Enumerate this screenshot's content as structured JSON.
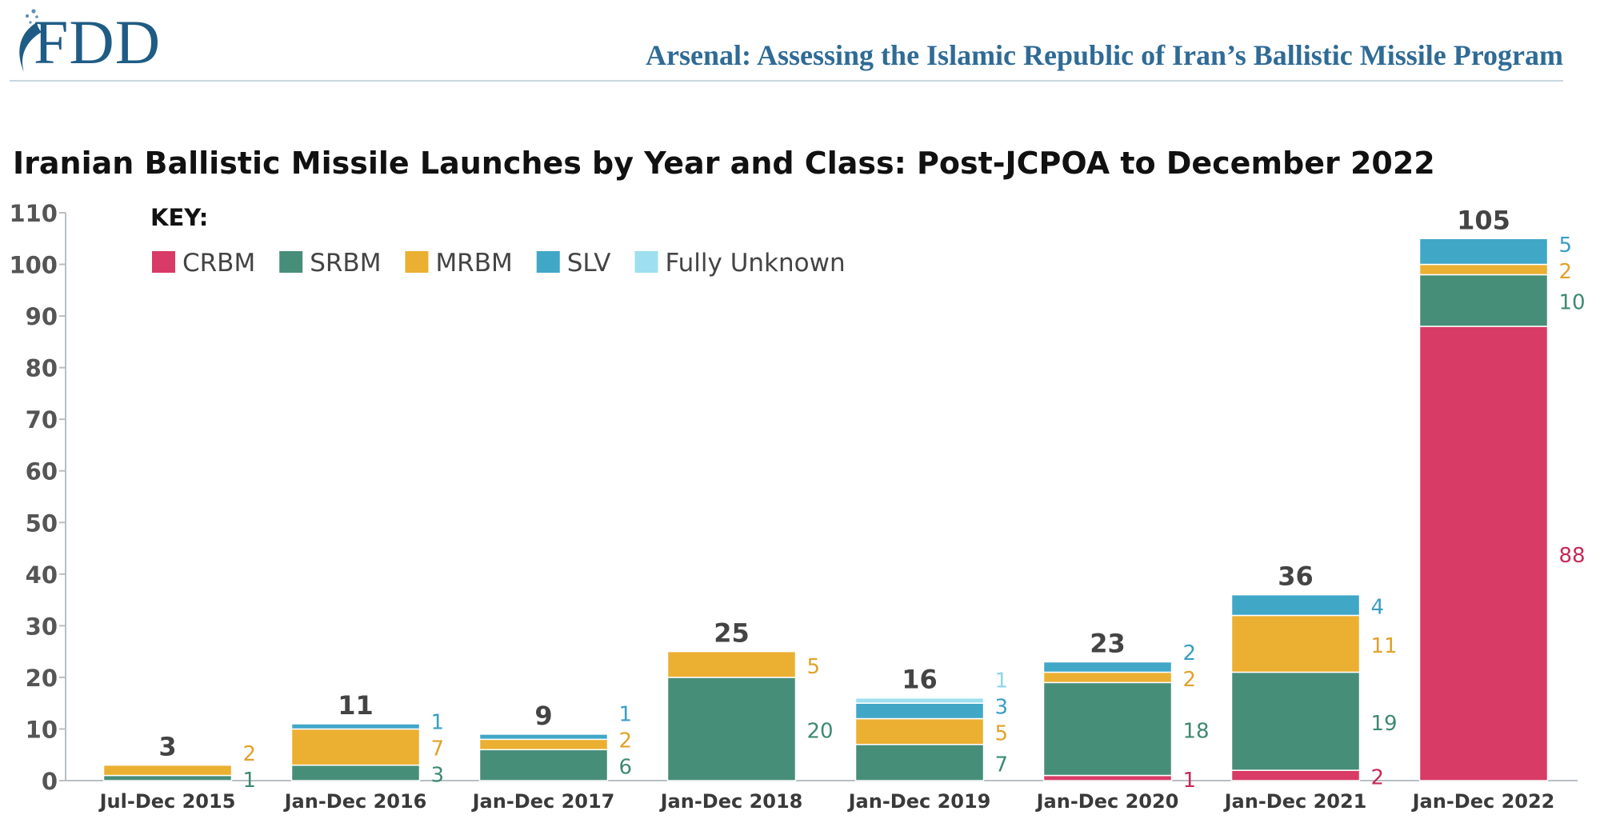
{
  "header": {
    "logo": "FDD",
    "title": "Arsenal: Assessing the Islamic Republic of Iran’s Ballistic Missile Program"
  },
  "chart_data": {
    "type": "bar",
    "stacked": true,
    "title": "Iranian Ballistic Missile Launches by Year and Class: Post-JCPOA to December 2022",
    "xlabel": "",
    "ylabel": "",
    "ylim": [
      0,
      110
    ],
    "yticks": [
      0,
      10,
      20,
      30,
      40,
      50,
      60,
      70,
      80,
      90,
      100,
      110
    ],
    "grid": false,
    "legend_title": "KEY:",
    "legend_position": "top-left",
    "categories": [
      "Jul-Dec 2015",
      "Jan-Dec 2016",
      "Jan-Dec 2017",
      "Jan-Dec 2018",
      "Jan-Dec 2019",
      "Jan-Dec 2020",
      "Jan-Dec 2021",
      "Jan-Dec 2022"
    ],
    "series": [
      {
        "name": "CRBM",
        "color": "#d83b66",
        "label_color": "#c42a58",
        "values": [
          0,
          0,
          0,
          0,
          0,
          1,
          2,
          88
        ]
      },
      {
        "name": "SRBM",
        "color": "#478e79",
        "label_color": "#3d8a72",
        "values": [
          1,
          3,
          6,
          20,
          7,
          18,
          19,
          10
        ]
      },
      {
        "name": "MRBM",
        "color": "#ebaf31",
        "label_color": "#e0a22a",
        "values": [
          2,
          7,
          2,
          5,
          5,
          2,
          11,
          2
        ]
      },
      {
        "name": "SLV",
        "color": "#40a7c7",
        "label_color": "#3a9ec2",
        "values": [
          0,
          1,
          1,
          0,
          3,
          2,
          4,
          5
        ]
      },
      {
        "name": "Fully Unknown",
        "color": "#9ee0ef",
        "label_color": "#8dd6e8",
        "values": [
          0,
          0,
          0,
          0,
          1,
          0,
          0,
          0
        ]
      }
    ],
    "totals": [
      3,
      11,
      9,
      25,
      16,
      23,
      36,
      105
    ]
  }
}
